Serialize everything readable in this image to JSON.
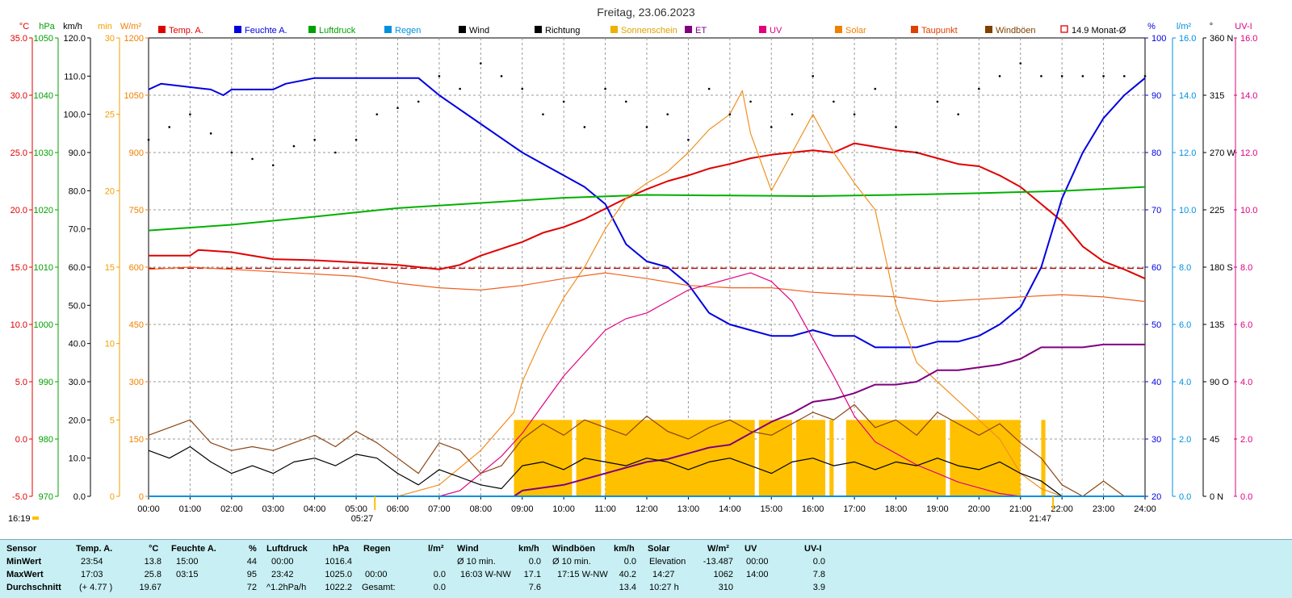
{
  "title": "Freitag, 23.06.2023",
  "legend": [
    {
      "label": "Temp. A.",
      "color": "#e00000"
    },
    {
      "label": "Feuchte A.",
      "color": "#0000e0"
    },
    {
      "label": "Luftdruck",
      "color": "#00a000"
    },
    {
      "label": "Regen",
      "color": "#0090e0"
    },
    {
      "label": "Wind",
      "color": "#000000"
    },
    {
      "label": "Richtung",
      "color": "#000000"
    },
    {
      "label": "Sonnenschein",
      "color": "#f0b000"
    },
    {
      "label": "ET",
      "color": "#800080"
    },
    {
      "label": "UV",
      "color": "#e00080"
    },
    {
      "label": "Solar",
      "color": "#f08000"
    },
    {
      "label": "Taupunkt",
      "color": "#e04000"
    },
    {
      "label": "Windböen",
      "color": "#804000"
    },
    {
      "label": "14.9 Monat-Ø",
      "color": "#e00000"
    }
  ],
  "axis_units": {
    "temp": "°C",
    "pressure": "hPa",
    "wind": "km/h",
    "sun": "min",
    "solar": "W/m²",
    "humidity": "%",
    "rain": "l/m²",
    "direction": "°",
    "uv": "UV-I"
  },
  "chart_data": {
    "type": "line",
    "xlim": [
      "00:00",
      "24:00"
    ],
    "x_ticks": [
      "00:00",
      "01:00",
      "02:00",
      "03:00",
      "04:00",
      "05:00",
      "06:00",
      "07:00",
      "08:00",
      "09:00",
      "10:00",
      "11:00",
      "12:00",
      "13:00",
      "14:00",
      "15:00",
      "16:00",
      "17:00",
      "18:00",
      "19:00",
      "20:00",
      "21:00",
      "22:00",
      "23:00",
      "24:00"
    ],
    "axes": {
      "temp": {
        "ylim": [
          -5,
          35
        ],
        "ticks": [
          "35.0",
          "30.0",
          "25.0",
          "20.0",
          "15.0",
          "10.0",
          "5.0",
          "0.0",
          "-5.0"
        ],
        "color": "#e00000"
      },
      "pressure": {
        "ylim": [
          970,
          1050
        ],
        "ticks": [
          "1050",
          "1040",
          "1030",
          "1020",
          "1010",
          "1000",
          "990",
          "980",
          "970"
        ],
        "color": "#00a000"
      },
      "wind": {
        "ylim": [
          0,
          120
        ],
        "ticks": [
          "120.0",
          "110.0",
          "100.0",
          "90.0",
          "80.0",
          "70.0",
          "60.0",
          "50.0",
          "40.0",
          "30.0",
          "20.0",
          "10.0",
          "0.0"
        ],
        "color": "#000000"
      },
      "sun": {
        "ylim": [
          0,
          30
        ],
        "ticks": [
          "30",
          "25",
          "20",
          "15",
          "10",
          "5",
          "0"
        ],
        "color": "#f0b000"
      },
      "solar": {
        "ylim": [
          0,
          1200
        ],
        "ticks": [
          "1200",
          "1050",
          "900",
          "750",
          "600",
          "450",
          "300",
          "150",
          "0"
        ],
        "color": "#f0b000"
      },
      "humidity": {
        "ylim": [
          20,
          100
        ],
        "ticks": [
          "100",
          "90",
          "80",
          "70",
          "60",
          "50",
          "40",
          "30",
          "20"
        ],
        "color": "#0000e0"
      },
      "rain": {
        "ylim": [
          0,
          16
        ],
        "ticks": [
          "16.0",
          "14.0",
          "12.0",
          "10.0",
          "8.0",
          "6.0",
          "4.0",
          "2.0",
          "0.0"
        ],
        "color": "#0090e0"
      },
      "direction": {
        "ylim": [
          0,
          360
        ],
        "ticks": [
          "360 N",
          "315",
          "270 W",
          "225",
          "180 S",
          "135",
          "90 O",
          "45",
          "0 N"
        ],
        "color": "#000000"
      },
      "uv": {
        "ylim": [
          0,
          16
        ],
        "ticks": [
          "16.0",
          "14.0",
          "12.0",
          "10.0",
          "8.0",
          "6.0",
          "4.0",
          "2.0",
          "0.0"
        ],
        "color": "#e00080"
      }
    },
    "series": [
      {
        "name": "Temp. A.",
        "axis": "temp",
        "x": [
          0,
          1,
          1.2,
          2,
          3,
          4,
          5,
          6,
          7,
          7.5,
          8,
          9,
          9.5,
          10,
          10.5,
          11,
          11.5,
          12,
          12.5,
          13,
          13.5,
          14,
          14.5,
          15,
          15.5,
          16,
          16.5,
          17,
          17.5,
          18,
          18.5,
          19,
          19.5,
          20,
          20.5,
          21,
          21.5,
          22,
          22.5,
          23,
          23.5,
          24
        ],
        "y": [
          16.0,
          16.0,
          16.5,
          16.3,
          15.7,
          15.6,
          15.4,
          15.2,
          14.8,
          15.2,
          16.0,
          17.2,
          18.0,
          18.5,
          19.2,
          20.1,
          21.0,
          21.8,
          22.5,
          23.0,
          23.6,
          24.0,
          24.5,
          24.8,
          25.0,
          25.2,
          25.0,
          25.8,
          25.5,
          25.2,
          25.0,
          24.5,
          24.0,
          23.8,
          23.0,
          22.0,
          20.5,
          19.0,
          16.8,
          15.5,
          14.8,
          14.0
        ]
      },
      {
        "name": "Feuchte A.",
        "axis": "humidity",
        "x": [
          0,
          0.3,
          1.5,
          1.8,
          2,
          3,
          3.3,
          4,
          5,
          6.5,
          7,
          8,
          9,
          9.5,
          10,
          10.5,
          11,
          11.5,
          12,
          12.5,
          13,
          13.5,
          14,
          14.5,
          15,
          15.5,
          16,
          16.5,
          17,
          17.5,
          18,
          18.5,
          19,
          19.5,
          20,
          20.5,
          21,
          21.5,
          22,
          22.5,
          23,
          23.5,
          24
        ],
        "y": [
          91,
          92,
          91,
          90,
          91,
          91,
          92,
          93,
          93,
          93,
          90,
          85,
          80,
          78,
          76,
          74,
          71,
          64,
          61,
          60,
          57,
          52,
          50,
          49,
          48,
          48,
          49,
          48,
          48,
          46,
          46,
          46,
          47,
          47,
          48,
          50,
          53,
          60,
          72,
          80,
          86,
          90,
          93
        ]
      },
      {
        "name": "Luftdruck",
        "axis": "pressure",
        "x": [
          0,
          2,
          4,
          6,
          8,
          10,
          12,
          14,
          16,
          18,
          20,
          22,
          24
        ],
        "y": [
          1016.4,
          1017.4,
          1018.8,
          1020.3,
          1021.2,
          1022.1,
          1022.6,
          1022.5,
          1022.4,
          1022.6,
          1022.9,
          1023.3,
          1024.0
        ]
      },
      {
        "name": "Solar",
        "axis": "solar",
        "x": [
          0,
          6,
          7,
          8,
          8.8,
          9,
          9.5,
          10,
          10.5,
          11,
          11.5,
          12,
          12.5,
          13,
          13.5,
          14,
          14.3,
          14.5,
          15,
          15.5,
          16,
          16.5,
          17,
          17.5,
          18,
          18.5,
          19,
          19.5,
          20,
          20.5,
          21,
          21.5,
          22,
          24
        ],
        "y": [
          0,
          0,
          30,
          120,
          220,
          300,
          420,
          520,
          600,
          700,
          780,
          820,
          850,
          900,
          960,
          1000,
          1062,
          950,
          800,
          900,
          1000,
          900,
          820,
          750,
          500,
          350,
          300,
          250,
          200,
          150,
          60,
          20,
          0,
          0
        ]
      },
      {
        "name": "Taupunkt",
        "axis": "temp",
        "x": [
          0,
          1,
          2,
          3,
          4,
          5,
          6,
          7,
          8,
          9,
          10,
          11,
          12,
          13,
          14,
          15,
          16,
          17,
          18,
          19,
          20,
          21,
          22,
          23,
          24
        ],
        "y": [
          14.8,
          15.0,
          14.8,
          14.6,
          14.4,
          14.2,
          13.6,
          13.2,
          13.0,
          13.4,
          14.0,
          14.5,
          14.0,
          13.4,
          13.2,
          13.2,
          12.8,
          12.6,
          12.4,
          12.0,
          12.2,
          12.4,
          12.6,
          12.4,
          12.0
        ]
      },
      {
        "name": "UV",
        "axis": "uv",
        "x": [
          0,
          7,
          7.5,
          8,
          8.5,
          9,
          9.5,
          10,
          10.5,
          11,
          11.5,
          12,
          12.5,
          13,
          13.5,
          14,
          14.5,
          15,
          15.5,
          16,
          16.5,
          17,
          17.5,
          18,
          18.5,
          19,
          19.5,
          20,
          20.5,
          21,
          24
        ],
        "y": [
          0,
          0,
          0.2,
          0.8,
          1.4,
          2.2,
          3.2,
          4.2,
          5.0,
          5.8,
          6.2,
          6.4,
          6.8,
          7.2,
          7.4,
          7.6,
          7.8,
          7.5,
          6.8,
          5.5,
          4.2,
          2.8,
          1.9,
          1.5,
          1.1,
          0.8,
          0.5,
          0.3,
          0.1,
          0,
          0
        ]
      },
      {
        "name": "ET",
        "axis": "rain",
        "x": [
          0,
          8.8,
          9,
          10,
          10.5,
          11,
          11.5,
          12,
          12.5,
          13,
          13.5,
          14,
          14.5,
          15,
          15.5,
          16,
          16.5,
          17,
          17.5,
          18,
          18.5,
          19,
          19.5,
          20,
          20.5,
          21,
          21.5,
          22,
          22.5,
          23,
          23.5,
          24
        ],
        "y": [
          0,
          0,
          0.2,
          0.4,
          0.6,
          0.8,
          1.0,
          1.2,
          1.3,
          1.5,
          1.7,
          1.8,
          2.2,
          2.6,
          2.9,
          3.3,
          3.4,
          3.6,
          3.9,
          3.9,
          4.0,
          4.4,
          4.4,
          4.5,
          4.6,
          4.8,
          5.2,
          5.2,
          5.2,
          5.3,
          5.3,
          5.3
        ]
      },
      {
        "name": "Wind",
        "axis": "wind",
        "x": [
          0,
          0.5,
          1,
          1.5,
          2,
          2.5,
          3,
          3.5,
          4,
          4.5,
          5,
          5.5,
          6,
          6.5,
          7,
          7.5,
          8,
          8.5,
          9,
          9.5,
          10,
          10.5,
          11,
          11.5,
          12,
          12.5,
          13,
          13.5,
          14,
          14.5,
          15,
          15.5,
          16,
          16.5,
          17,
          17.5,
          18,
          18.5,
          19,
          19.5,
          20,
          20.5,
          21,
          21.5,
          22,
          22.5,
          23,
          23.5,
          24
        ],
        "y": [
          12,
          10,
          13,
          9,
          6,
          8,
          6,
          9,
          10,
          8,
          11,
          10,
          6,
          3,
          7,
          5,
          3,
          2,
          8,
          9,
          7,
          10,
          9,
          8,
          10,
          9,
          7,
          9,
          10,
          8,
          6,
          9,
          10,
          8,
          9,
          7,
          9,
          8,
          10,
          8,
          7,
          9,
          6,
          4,
          0,
          0,
          0,
          0,
          0
        ]
      },
      {
        "name": "Windböen",
        "axis": "wind",
        "x": [
          0,
          0.5,
          1,
          1.5,
          2,
          2.5,
          3,
          3.5,
          4,
          4.5,
          5,
          5.5,
          6,
          6.5,
          7,
          7.5,
          8,
          8.5,
          9,
          9.5,
          10,
          10.5,
          11,
          11.5,
          12,
          12.5,
          13,
          13.5,
          14,
          14.5,
          15,
          15.5,
          16,
          16.5,
          17,
          17.5,
          18,
          18.5,
          19,
          19.5,
          20,
          20.5,
          21,
          21.5,
          22,
          22.5,
          23,
          23.5,
          24
        ],
        "y": [
          16,
          18,
          20,
          14,
          12,
          13,
          12,
          14,
          16,
          13,
          17,
          14,
          10,
          6,
          14,
          12,
          6,
          8,
          15,
          19,
          16,
          20,
          18,
          16,
          21,
          17,
          15,
          18,
          20,
          17,
          16,
          19,
          22,
          20,
          24,
          18,
          20,
          16,
          22,
          19,
          16,
          19,
          14,
          10,
          3,
          0,
          4,
          0,
          0
        ]
      },
      {
        "name": "Richtung",
        "axis": "direction",
        "x": [
          0,
          0.5,
          1,
          1.5,
          2,
          2.5,
          3,
          3.5,
          4,
          4.5,
          5,
          5.5,
          6,
          6.5,
          7,
          7.5,
          8,
          8.5,
          9,
          9.5,
          10,
          10.5,
          11,
          11.5,
          12,
          12.5,
          13,
          13.5,
          14,
          14.5,
          15,
          15.5,
          16,
          16.5,
          17,
          17.5,
          18,
          18.5,
          19,
          19.5,
          20,
          20.5,
          21,
          21.5,
          22,
          22.5,
          23,
          23.5,
          24
        ],
        "y": [
          280,
          290,
          300,
          285,
          270,
          265,
          260,
          275,
          280,
          270,
          280,
          300,
          305,
          310,
          330,
          320,
          340,
          330,
          320,
          300,
          310,
          290,
          320,
          310,
          290,
          300,
          280,
          320,
          300,
          310,
          290,
          300,
          330,
          310,
          300,
          320,
          290,
          270,
          310,
          300,
          320,
          330,
          340,
          330,
          330,
          330,
          330,
          330,
          330
        ]
      },
      {
        "name": "Regen",
        "axis": "rain",
        "x": [
          0,
          24
        ],
        "y": [
          0,
          0
        ]
      }
    ],
    "sunshine_blocks": [
      [
        8.8,
        10.2
      ],
      [
        10.3,
        10.9
      ],
      [
        11,
        14.6
      ],
      [
        14.7,
        15.5
      ],
      [
        15.6,
        16.3
      ],
      [
        16.4,
        16.5
      ],
      [
        16.8,
        19.2
      ],
      [
        19.3,
        21.0
      ],
      [
        21.5,
        21.6
      ]
    ],
    "sunshine_level": 5,
    "monthly_avg_temp": 14.9,
    "sunrise": "05:27",
    "sunset": "21:47",
    "time_now": "16:19"
  },
  "summary": {
    "headers": {
      "sensor": "Sensor",
      "temp": "Temp. A.",
      "temp_u": "°C",
      "hum": "Feuchte A.",
      "hum_u": "%",
      "press": "Luftdruck",
      "press_u": "hPa",
      "rain": "Regen",
      "rain_u": "l/m²",
      "wind": "Wind",
      "wind_u": "km/h",
      "gust": "Windböen",
      "gust_u": "km/h",
      "solar": "Solar",
      "solar_u": "W/m²",
      "uv": "UV",
      "uv_u": "UV-I"
    },
    "rows": [
      {
        "label": "MinWert",
        "temp_t": "23:54",
        "temp_v": "13.8",
        "hum_t": "15:00",
        "hum_v": "44",
        "press_t": "00:00",
        "press_v": "1016.4",
        "rain_t": "",
        "rain_v": "",
        "wind_t": "Ø 10 min.",
        "wind_v": "0.0",
        "gust_t": "Ø 10 min.",
        "gust_v": "0.0",
        "solar_t": "Elevation",
        "solar_v": "-13.487",
        "uv_t": "00:00",
        "uv_v": "0.0"
      },
      {
        "label": "MaxWert",
        "temp_t": "17:03",
        "temp_v": "25.8",
        "hum_t": "03:15",
        "hum_v": "95",
        "press_t": "23:42",
        "press_v": "1025.0",
        "rain_t": "00:00",
        "rain_v": "0.0",
        "wind_t": "16:03     W-NW",
        "wind_v": "17.1",
        "gust_t": "17:15     W-NW",
        "gust_v": "40.2",
        "solar_t": "14:27",
        "solar_v": "1062",
        "uv_t": "14:00",
        "uv_v": "7.8"
      },
      {
        "label": "Durchschnitt",
        "temp_t": "(+ 4.77 )",
        "temp_v": "19.67",
        "hum_t": "",
        "hum_v": "72",
        "press_t": "^1.2hPa/h",
        "press_v": "1022.2",
        "rain_t": "Gesamt:",
        "rain_v": "0.0",
        "wind_t": "",
        "wind_v": "7.6",
        "gust_t": "",
        "gust_v": "13.4",
        "solar_t": "10:27 h",
        "solar_v": "310",
        "uv_t": "",
        "uv_v": "3.9"
      }
    ]
  }
}
